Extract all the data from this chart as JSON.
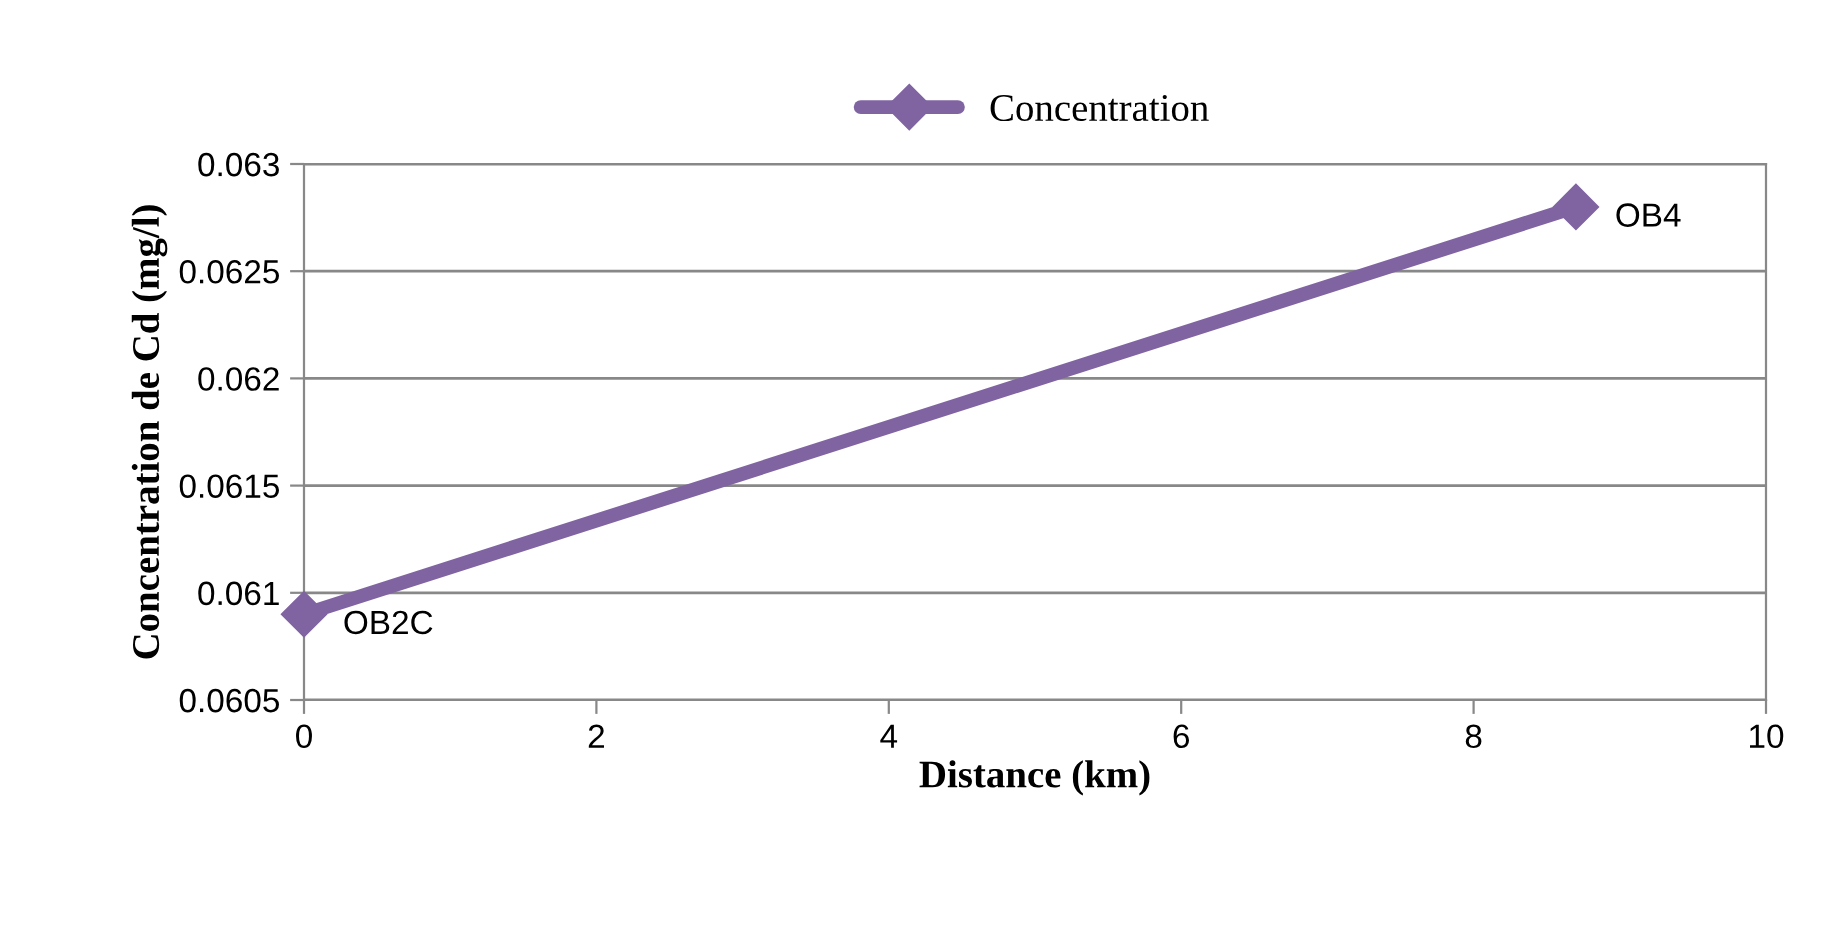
{
  "chart_data": {
    "type": "line",
    "xlabel": "Distance (km)",
    "ylabel": "Concentration de Cd (mg/l)",
    "x": [
      0,
      8.7
    ],
    "series": [
      {
        "name": "Concentration",
        "color": "#8064a2",
        "values": [
          0.0609,
          0.0628
        ]
      }
    ],
    "annotations": [
      {
        "text": "OB2C",
        "x": 0,
        "y": 0.0609
      },
      {
        "text": "OB4",
        "x": 8.7,
        "y": 0.0628
      }
    ],
    "xlim": [
      0,
      10
    ],
    "xticks": [
      0,
      2,
      4,
      6,
      8,
      10
    ],
    "ylim": [
      0.0605,
      0.063
    ],
    "yticks": [
      0.0605,
      0.061,
      0.0615,
      0.062,
      0.0625,
      0.063
    ],
    "grid": "y",
    "legend": "top",
    "marker": "diamond",
    "line_style": "solid"
  }
}
